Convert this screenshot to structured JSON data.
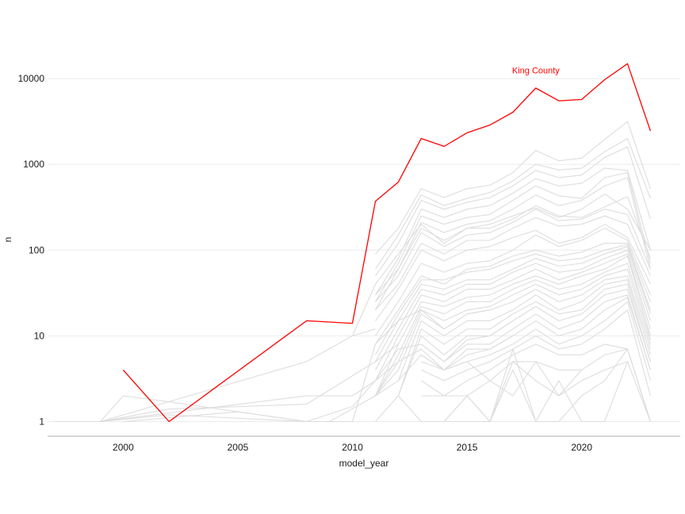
{
  "chart_data": {
    "type": "line",
    "xlabel": "model_year",
    "ylabel": "n",
    "xlim": [
      1996.7,
      2024.3
    ],
    "ylim": [
      0.8,
      22000
    ],
    "yscale": "log",
    "grid": "horizontal",
    "xticks": [
      2000,
      2005,
      2010,
      2015,
      2020
    ],
    "yticks": [
      1,
      10,
      100,
      1000,
      10000
    ],
    "ytick_labels": [
      "1",
      "10",
      "100",
      "1000",
      "10000"
    ],
    "highlight_color": "#ff0000",
    "background_color": "#dddddd",
    "annotation": {
      "text": "King County",
      "x": 2018,
      "y": 12500,
      "color": "#ff0000"
    },
    "highlight": {
      "name": "King County",
      "x": [
        2000,
        2002,
        2008,
        2010,
        2011,
        2012,
        2013,
        2014,
        2015,
        2016,
        2017,
        2018,
        2019,
        2020,
        2021,
        2022,
        2023
      ],
      "y": [
        4,
        1,
        15,
        14,
        370,
        620,
        2000,
        1620,
        2330,
        2870,
        4050,
        7750,
        5500,
        5700,
        9700,
        14900,
        2450
      ]
    },
    "background_series": [
      {
        "x": [
          2011,
          2012,
          2013,
          2014,
          2015,
          2016,
          2017,
          2018,
          2019,
          2020,
          2021,
          2022,
          2023
        ],
        "y": [
          90,
          180,
          520,
          410,
          520,
          570,
          800,
          1450,
          1100,
          1180,
          1950,
          3150,
          520
        ]
      },
      {
        "x": [
          2011,
          2012,
          2013,
          2014,
          2015,
          2016,
          2017,
          2018,
          2019,
          2020,
          2021,
          2022,
          2023
        ],
        "y": [
          60,
          150,
          440,
          330,
          400,
          470,
          640,
          1000,
          860,
          900,
          1400,
          2000,
          400
        ]
      },
      {
        "x": [
          2011,
          2012,
          2013,
          2014,
          2015,
          2016,
          2017,
          2018,
          2019,
          2020,
          2021,
          2022,
          2023
        ],
        "y": [
          50,
          120,
          380,
          300,
          360,
          410,
          560,
          850,
          700,
          750,
          1200,
          1600,
          230
        ]
      },
      {
        "x": [
          2011,
          2012,
          2013,
          2014,
          2015,
          2016,
          2017,
          2018,
          2019,
          2020,
          2021,
          2022,
          2023
        ],
        "y": [
          30,
          80,
          300,
          240,
          300,
          330,
          460,
          680,
          560,
          600,
          900,
          850,
          100
        ]
      },
      {
        "x": [
          2011,
          2012,
          2013,
          2014,
          2015,
          2016,
          2017,
          2018,
          2019,
          2020,
          2021,
          2022,
          2023
        ],
        "y": [
          25,
          70,
          250,
          200,
          240,
          260,
          380,
          560,
          430,
          400,
          700,
          800,
          70
        ]
      },
      {
        "x": [
          2011,
          2012,
          2013,
          2014,
          2015,
          2016,
          2017,
          2018,
          2019,
          2020,
          2021,
          2022,
          2023
        ],
        "y": [
          20,
          60,
          210,
          160,
          200,
          220,
          300,
          440,
          330,
          380,
          560,
          700,
          60
        ]
      },
      {
        "x": [
          2010,
          2011,
          2012,
          2013,
          2014,
          2015,
          2016,
          2017,
          2018,
          2019,
          2020,
          2021,
          2022,
          2023
        ],
        "y": [
          10,
          40,
          90,
          200,
          120,
          180,
          200,
          250,
          310,
          240,
          300,
          450,
          300,
          100
        ]
      },
      {
        "x": [
          2011,
          2012,
          2013,
          2014,
          2015,
          2016,
          2017,
          2018,
          2019,
          2020,
          2021,
          2022,
          2023
        ],
        "y": [
          30,
          60,
          180,
          130,
          180,
          180,
          230,
          330,
          250,
          240,
          320,
          420,
          80
        ]
      },
      {
        "x": [
          2011,
          2012,
          2013,
          2014,
          2015,
          2016,
          2017,
          2018,
          2019,
          2020,
          2021,
          2022,
          2023
        ],
        "y": [
          25,
          50,
          160,
          110,
          150,
          160,
          210,
          300,
          220,
          230,
          300,
          260,
          60
        ]
      },
      {
        "x": [
          2011,
          2012,
          2013,
          2014,
          2015,
          2016,
          2017,
          2018,
          2019,
          2020,
          2021,
          2022,
          2023
        ],
        "y": [
          20,
          40,
          120,
          90,
          130,
          130,
          180,
          240,
          190,
          200,
          250,
          200,
          50
        ]
      },
      {
        "x": [
          2011,
          2012,
          2013,
          2014,
          2015,
          2016,
          2017,
          2018,
          2019,
          2020,
          2021,
          2022,
          2023
        ],
        "y": [
          15,
          35,
          100,
          75,
          100,
          110,
          140,
          170,
          120,
          140,
          200,
          140,
          40
        ]
      },
      {
        "x": [
          2011,
          2012,
          2013,
          2014,
          2015,
          2016,
          2017,
          2018,
          2019,
          2020,
          2021,
          2022,
          2023
        ],
        "y": [
          10,
          25,
          70,
          55,
          70,
          75,
          100,
          150,
          110,
          130,
          180,
          130,
          30
        ]
      },
      {
        "x": [
          2011,
          2012,
          2013,
          2014,
          2015,
          2016,
          2017,
          2018,
          2019,
          2020,
          2021,
          2022,
          2023
        ],
        "y": [
          8,
          20,
          50,
          40,
          60,
          65,
          85,
          100,
          85,
          95,
          120,
          120,
          25
        ]
      },
      {
        "x": [
          2011,
          2012,
          2013,
          2014,
          2015,
          2016,
          2017,
          2018,
          2019,
          2020,
          2021,
          2022,
          2023
        ],
        "y": [
          6,
          18,
          45,
          45,
          55,
          60,
          75,
          90,
          75,
          80,
          100,
          115,
          20
        ]
      },
      {
        "x": [
          2011,
          2012,
          2013,
          2014,
          2015,
          2016,
          2017,
          2018,
          2019,
          2020,
          2021,
          2022,
          2023
        ],
        "y": [
          5,
          15,
          40,
          35,
          45,
          45,
          60,
          80,
          65,
          70,
          90,
          110,
          18
        ]
      },
      {
        "x": [
          2011,
          2012,
          2013,
          2014,
          2015,
          2016,
          2017,
          2018,
          2019,
          2020,
          2021,
          2022,
          2023
        ],
        "y": [
          4,
          12,
          35,
          30,
          40,
          40,
          55,
          70,
          55,
          60,
          80,
          100,
          15
        ]
      },
      {
        "x": [
          2011,
          2012,
          2013,
          2014,
          2015,
          2016,
          2017,
          2018,
          2019,
          2020,
          2021,
          2022,
          2023
        ],
        "y": [
          3,
          10,
          30,
          25,
          35,
          35,
          45,
          60,
          45,
          55,
          70,
          90,
          12
        ]
      },
      {
        "x": [
          2011,
          2012,
          2013,
          2014,
          2015,
          2016,
          2017,
          2018,
          2019,
          2020,
          2021,
          2022,
          2023
        ],
        "y": [
          2,
          8,
          25,
          22,
          28,
          30,
          40,
          50,
          40,
          50,
          60,
          85,
          10
        ]
      },
      {
        "x": [
          2011,
          2012,
          2013,
          2014,
          2015,
          2016,
          2017,
          2018,
          2019,
          2020,
          2021,
          2022,
          2023
        ],
        "y": [
          2,
          6,
          22,
          18,
          25,
          25,
          35,
          45,
          35,
          40,
          55,
          70,
          9
        ]
      },
      {
        "x": [
          2011,
          2012,
          2013,
          2014,
          2015,
          2016,
          2017,
          2018,
          2019,
          2020,
          2021,
          2022,
          2023
        ],
        "y": [
          2,
          5,
          20,
          15,
          20,
          22,
          30,
          40,
          30,
          35,
          50,
          60,
          8
        ]
      },
      {
        "x": [
          2011,
          2012,
          2013,
          2014,
          2015,
          2016,
          2017,
          2018,
          2019,
          2020,
          2021,
          2022,
          2023
        ],
        "y": [
          2,
          4,
          18,
          12,
          18,
          20,
          25,
          35,
          25,
          30,
          45,
          50,
          7
        ]
      },
      {
        "x": [
          2012,
          2013,
          2014,
          2015,
          2016,
          2017,
          2018,
          2019,
          2020,
          2021,
          2022,
          2023
        ],
        "y": [
          3,
          15,
          10,
          15,
          15,
          20,
          30,
          20,
          25,
          40,
          45,
          6
        ]
      },
      {
        "x": [
          2012,
          2013,
          2014,
          2015,
          2016,
          2017,
          2018,
          2019,
          2020,
          2021,
          2022,
          2023
        ],
        "y": [
          2,
          12,
          8,
          12,
          12,
          18,
          25,
          18,
          20,
          35,
          40,
          5
        ]
      },
      {
        "x": [
          2012,
          2013,
          2014,
          2015,
          2016,
          2017,
          2018,
          2019,
          2020,
          2021,
          2022,
          2023
        ],
        "y": [
          2,
          10,
          6,
          10,
          10,
          15,
          22,
          15,
          18,
          30,
          35,
          5
        ]
      },
      {
        "x": [
          2013,
          2014,
          2015,
          2016,
          2017,
          2018,
          2019,
          2020,
          2021,
          2022,
          2023
        ],
        "y": [
          8,
          5,
          8,
          8,
          12,
          18,
          12,
          15,
          25,
          30,
          4
        ]
      },
      {
        "x": [
          2013,
          2014,
          2015,
          2016,
          2017,
          2018,
          2019,
          2020,
          2021,
          2022,
          2023
        ],
        "y": [
          6,
          4,
          6,
          7,
          10,
          15,
          10,
          12,
          20,
          28,
          4
        ]
      },
      {
        "x": [
          2013,
          2014,
          2015,
          2016,
          2017,
          2018,
          2019,
          2020,
          2021,
          2022,
          2023
        ],
        "y": [
          5,
          4,
          5,
          6,
          8,
          12,
          8,
          10,
          15,
          25,
          3
        ]
      },
      {
        "x": [
          2013,
          2014,
          2015,
          2016,
          2017,
          2018,
          2019,
          2020,
          2021,
          2022,
          2023
        ],
        "y": [
          4,
          3,
          4,
          5,
          7,
          10,
          7,
          8,
          12,
          20,
          2
        ]
      },
      {
        "x": [
          2013,
          2014,
          2015,
          2016,
          2017,
          2018,
          2019,
          2020,
          2021,
          2022,
          2023
        ],
        "y": [
          3,
          2,
          3,
          4,
          6,
          8,
          6,
          6,
          8,
          7,
          1
        ]
      },
      {
        "x": [
          2013,
          2014,
          2015,
          2016,
          2017,
          2018,
          2019,
          2020,
          2021,
          2022,
          2023
        ],
        "y": [
          2,
          2,
          2,
          3,
          5,
          5,
          4,
          4,
          6,
          7,
          1
        ]
      },
      {
        "x": [
          2013,
          2014,
          2015,
          2016,
          2017,
          2018,
          2019,
          2020,
          2021,
          2022
        ],
        "y": [
          1,
          1,
          2,
          1,
          5,
          3,
          2,
          3,
          4,
          5
        ]
      },
      {
        "x": [
          2014,
          2015,
          2016,
          2017,
          2018,
          2019,
          2020,
          2021,
          2022,
          2023
        ],
        "y": [
          1,
          1,
          1,
          7,
          1,
          3,
          1,
          1,
          5,
          1
        ]
      },
      {
        "x": [
          2011,
          2012,
          2013,
          2014,
          2015,
          2016,
          2017,
          2018,
          2019,
          2020,
          2021,
          2022,
          2023
        ],
        "y": [
          1,
          2,
          1,
          1,
          2,
          1,
          4,
          1,
          1,
          2,
          3,
          7,
          1
        ]
      },
      {
        "x": [
          1999,
          2000,
          2002,
          2008,
          2010,
          2011,
          2012,
          2013,
          2014,
          2015,
          2016
        ],
        "y": [
          1,
          2,
          1.7,
          1,
          1,
          8,
          15,
          20,
          12,
          18,
          20
        ]
      },
      {
        "x": [
          1999,
          2008,
          2010,
          2011,
          2012,
          2013,
          2014,
          2015,
          2016,
          2017
        ],
        "y": [
          1,
          2,
          2,
          3,
          7,
          8,
          5,
          9,
          10,
          15
        ]
      },
      {
        "x": [
          1999,
          2002,
          2008,
          2009,
          2011,
          2012,
          2013,
          2014,
          2015,
          2016,
          2017
        ],
        "y": [
          1,
          1.2,
          1,
          1,
          2,
          3,
          6,
          4,
          7,
          7,
          10
        ]
      },
      {
        "x": [
          1997,
          1999,
          2008,
          2010,
          2011
        ],
        "y": [
          1,
          1,
          5,
          10,
          12
        ]
      },
      {
        "x": [
          1999,
          2002,
          2008,
          2011,
          2012
        ],
        "y": [
          1,
          1.4,
          1.6,
          5,
          8
        ]
      },
      {
        "x": [
          2000,
          2005,
          2008,
          2010,
          2011,
          2012,
          2013,
          2014,
          2015,
          2016,
          2017,
          2018,
          2019,
          2020
        ],
        "y": [
          1,
          1.3,
          1,
          1.5,
          3,
          5,
          7,
          4,
          5,
          3,
          2,
          5,
          2,
          4
        ]
      }
    ]
  }
}
